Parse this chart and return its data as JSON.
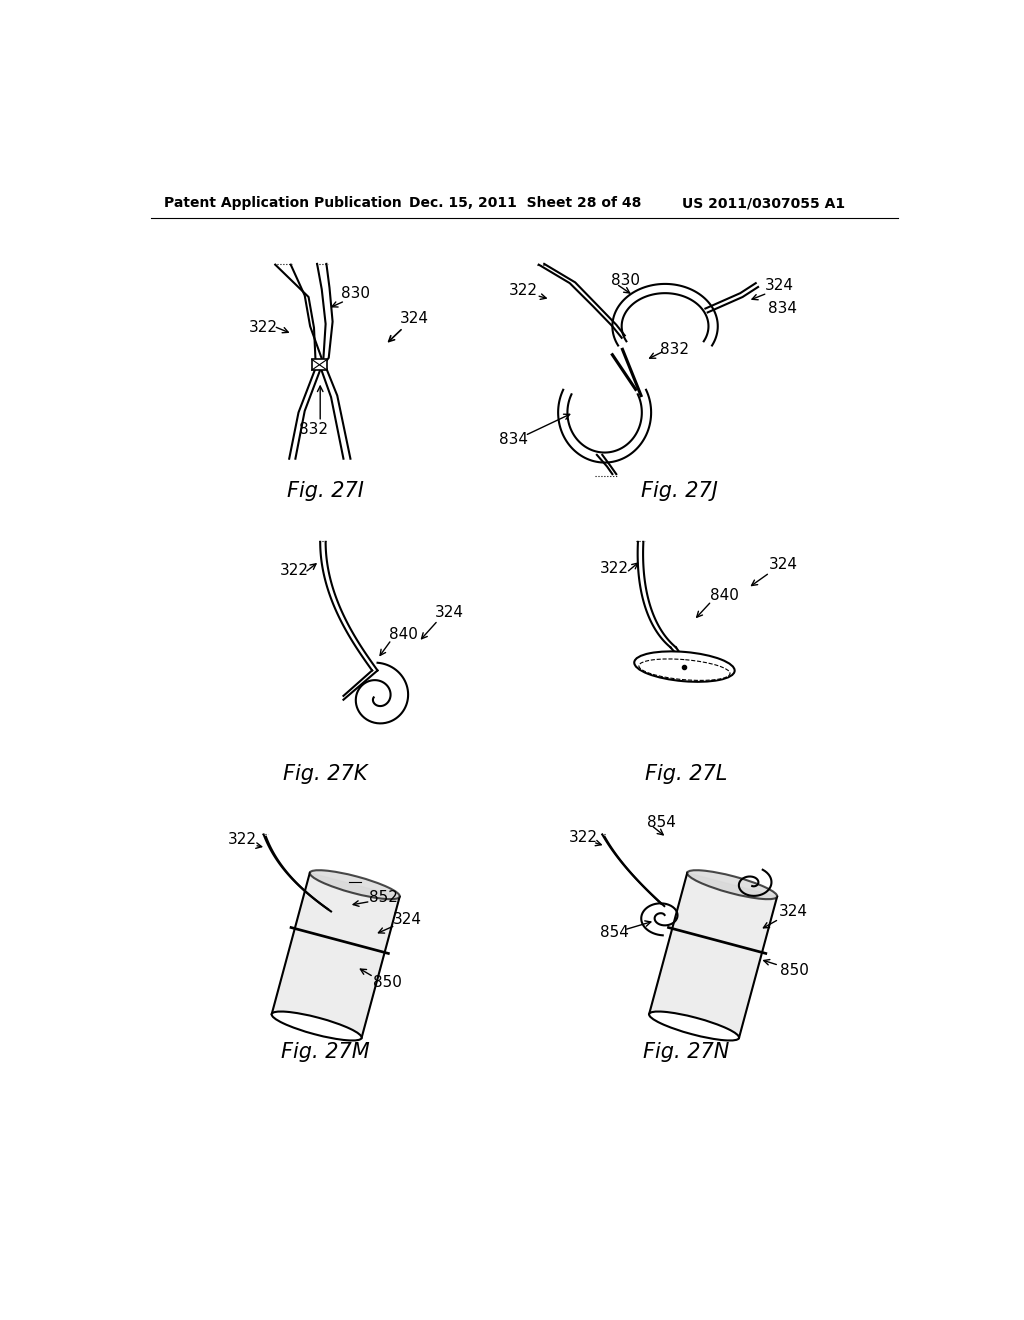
{
  "background_color": "#ffffff",
  "header_left": "Patent Application Publication",
  "header_center": "Dec. 15, 2011  Sheet 28 of 48",
  "header_right": "US 2011/0307055 A1",
  "lw": 1.5
}
